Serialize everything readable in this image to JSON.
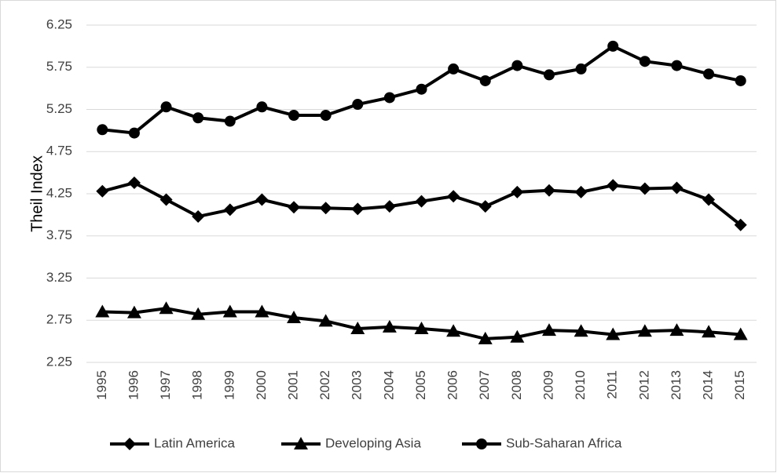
{
  "chart_data": {
    "type": "line",
    "y_label": "Theil Index",
    "categories": [
      "1995",
      "1996",
      "1997",
      "1998",
      "1999",
      "2000",
      "2001",
      "2002",
      "2003",
      "2004",
      "2005",
      "2006",
      "2007",
      "2008",
      "2009",
      "2010",
      "2011",
      "2012",
      "2013",
      "2014",
      "2015"
    ],
    "series": [
      {
        "name": "Latin America",
        "color": "#000000",
        "marker": "diamond",
        "values": [
          4.28,
          4.38,
          4.18,
          3.98,
          4.06,
          4.18,
          4.09,
          4.08,
          4.07,
          4.1,
          4.16,
          4.22,
          4.1,
          4.27,
          4.29,
          4.27,
          4.35,
          4.31,
          4.32,
          4.18,
          3.88
        ]
      },
      {
        "name": "Developing Asia",
        "color": "#000000",
        "marker": "triangle",
        "values": [
          2.85,
          2.84,
          2.89,
          2.82,
          2.85,
          2.85,
          2.78,
          2.74,
          2.65,
          2.67,
          2.65,
          2.62,
          2.53,
          2.55,
          2.63,
          2.62,
          2.58,
          2.62,
          2.63,
          2.61,
          2.58
        ]
      },
      {
        "name": "Sub-Saharan Africa",
        "color": "#000000",
        "marker": "circle",
        "values": [
          5.01,
          4.97,
          5.28,
          5.15,
          5.11,
          5.28,
          5.18,
          5.18,
          5.31,
          5.39,
          5.49,
          5.73,
          5.59,
          5.77,
          5.66,
          5.73,
          6.0,
          5.82,
          5.77,
          5.67,
          5.59
        ]
      }
    ],
    "ylim": [
      2.25,
      6.25
    ],
    "yticks": [
      2.25,
      2.75,
      3.25,
      3.75,
      4.25,
      4.75,
      5.25,
      5.75,
      6.25
    ],
    "grid": true,
    "legend": "bottom"
  }
}
